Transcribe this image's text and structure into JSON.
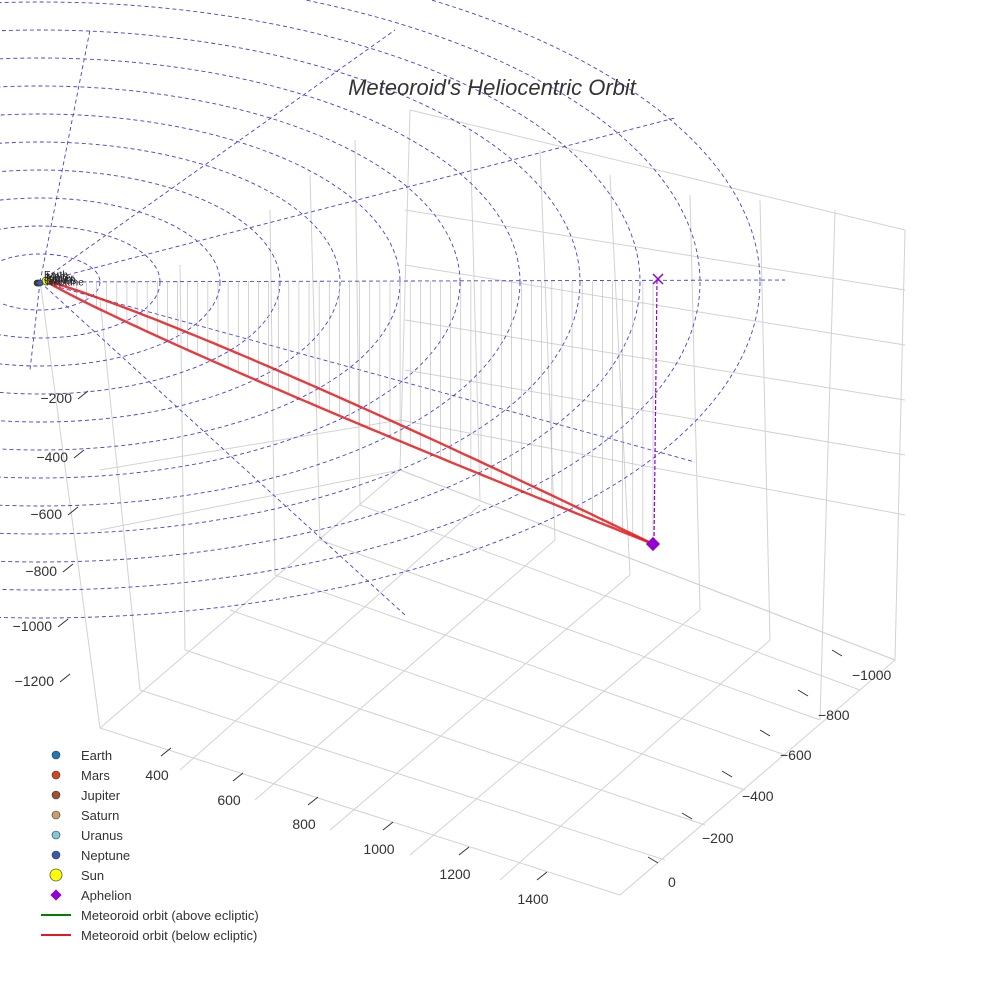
{
  "chart_data": {
    "type": "scatter",
    "title": "Meteoroid's Heliocentric Orbit",
    "z_ticks": [
      "−200",
      "−400",
      "−600",
      "−800",
      "−1000",
      "−1200"
    ],
    "x_ticks": [
      "400",
      "600",
      "800",
      "1000",
      "1200",
      "1400"
    ],
    "y_ticks": [
      "−1000",
      "−800",
      "−600",
      "−400",
      "−200",
      "0"
    ],
    "legend": [
      {
        "label": "Earth",
        "marker": "circle",
        "color": "#1f77b4"
      },
      {
        "label": "Mars",
        "marker": "circle",
        "color": "#d6451c"
      },
      {
        "label": "Jupiter",
        "marker": "circle",
        "color": "#a0522d"
      },
      {
        "label": "Saturn",
        "marker": "circle",
        "color": "#c8a070"
      },
      {
        "label": "Uranus",
        "marker": "circle",
        "color": "#7fc7d9"
      },
      {
        "label": "Neptune",
        "marker": "circle",
        "color": "#3a5bb0"
      },
      {
        "label": "Sun",
        "marker": "sun",
        "color": "#ffff00"
      },
      {
        "label": "Aphelion",
        "marker": "diamond",
        "color": "#9400d3"
      },
      {
        "label": "Meteoroid orbit (above ecliptic)",
        "marker": "line",
        "color": "#008000"
      },
      {
        "label": "Meteoroid orbit (below ecliptic)",
        "marker": "line",
        "color": "#e31a1c"
      }
    ],
    "planets": [
      "Earth",
      "Mars",
      "Jupiter",
      "Saturn",
      "Uranus",
      "Neptune"
    ],
    "aphelion_marker_color": "#9400d3",
    "orbit_color_below": "#e31a1c",
    "ecliptic_grid_color": "#4444cc",
    "grid": true
  }
}
